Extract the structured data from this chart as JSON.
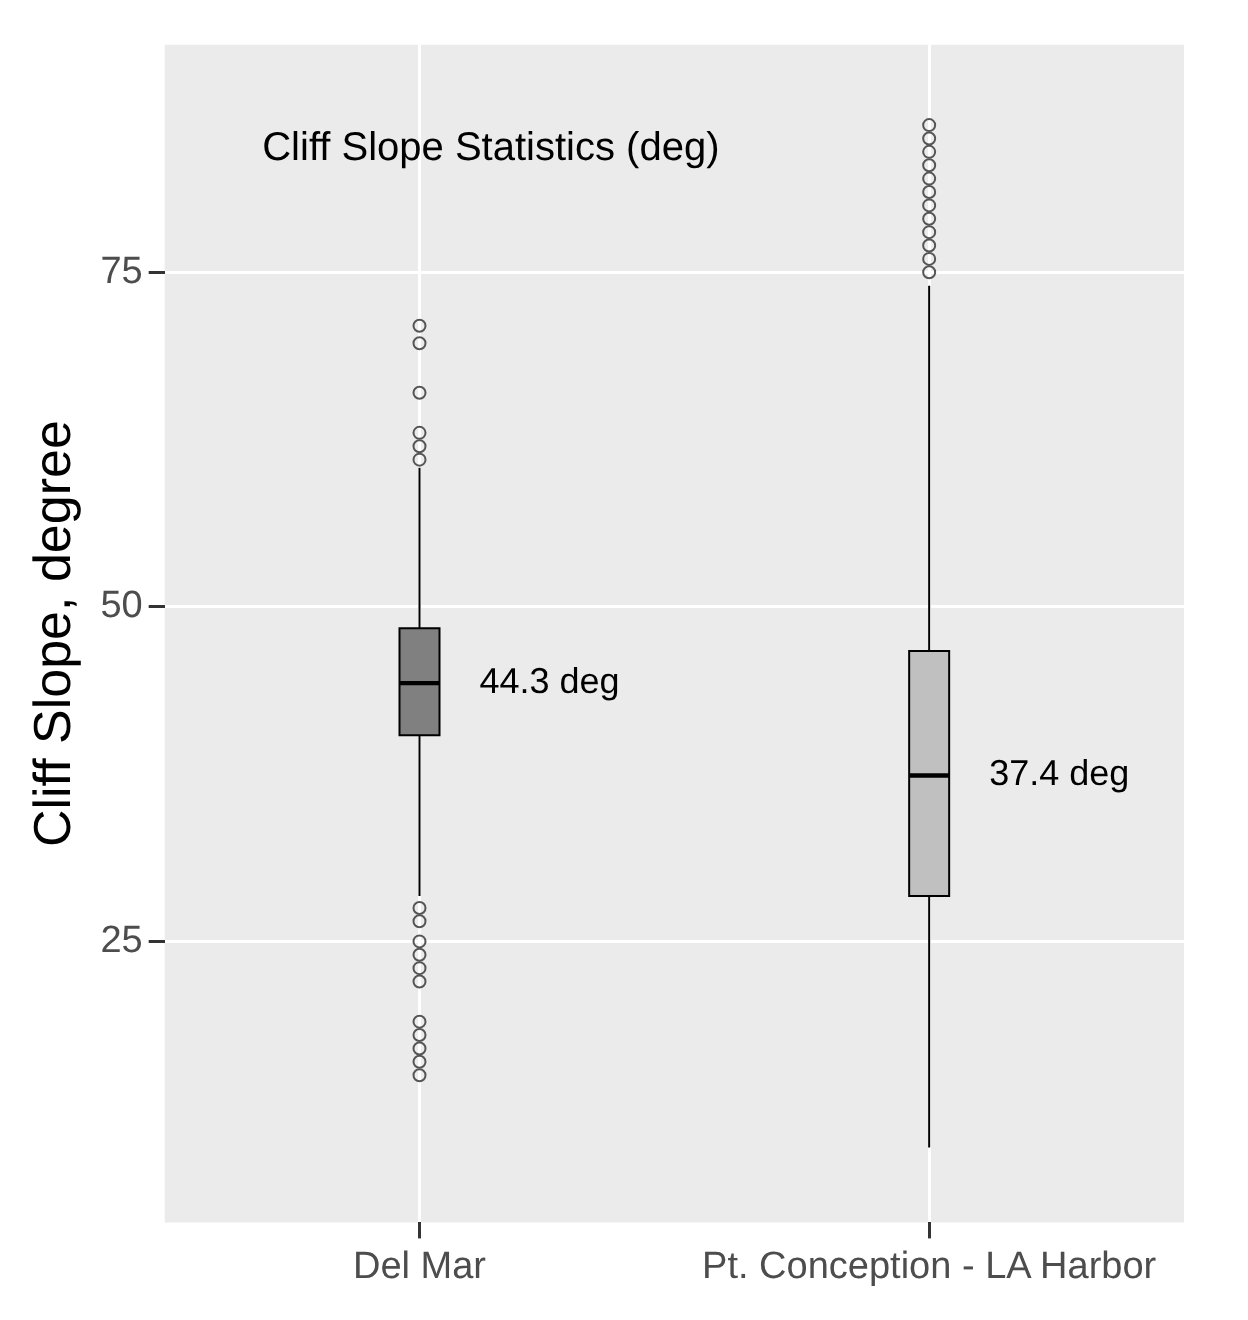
{
  "chart_data": {
    "type": "box",
    "title": "Cliff Slope Statistics (deg)",
    "ylabel": "Cliff Slope, degree",
    "categories": [
      "Del Mar",
      "Pt. Conception - LA Harbor"
    ],
    "ylim": [
      4,
      92
    ],
    "yticks": [
      25,
      50,
      75
    ],
    "grid": true,
    "series": [
      {
        "color": "#808080",
        "boxes": [
          {
            "low": 28.4,
            "q1": 40.4,
            "median": 44.3,
            "q3": 48.4,
            "high": 60.4,
            "outliers": [
              71,
              69.7,
              66,
              63,
              62,
              61,
              27.5,
              26.5,
              25,
              24,
              23,
              22,
              19,
              18,
              17,
              16,
              15
            ]
          },
          null
        ]
      },
      {
        "color": "#c0c0c0",
        "boxes": [
          null,
          {
            "low": 9.6,
            "q1": 28.4,
            "median": 37.4,
            "q3": 46.7,
            "high": 74,
            "outliers": [
              75,
              76,
              77,
              78,
              79,
              80,
              81,
              82,
              83,
              84,
              85,
              86
            ]
          }
        ]
      }
    ],
    "annotations": [
      {
        "text": "44.3 deg",
        "x": "Del Mar",
        "y": 44.3
      },
      {
        "text": "37.4 deg",
        "x": "Pt. Conception - LA Harbor",
        "y": 37.4
      }
    ]
  }
}
